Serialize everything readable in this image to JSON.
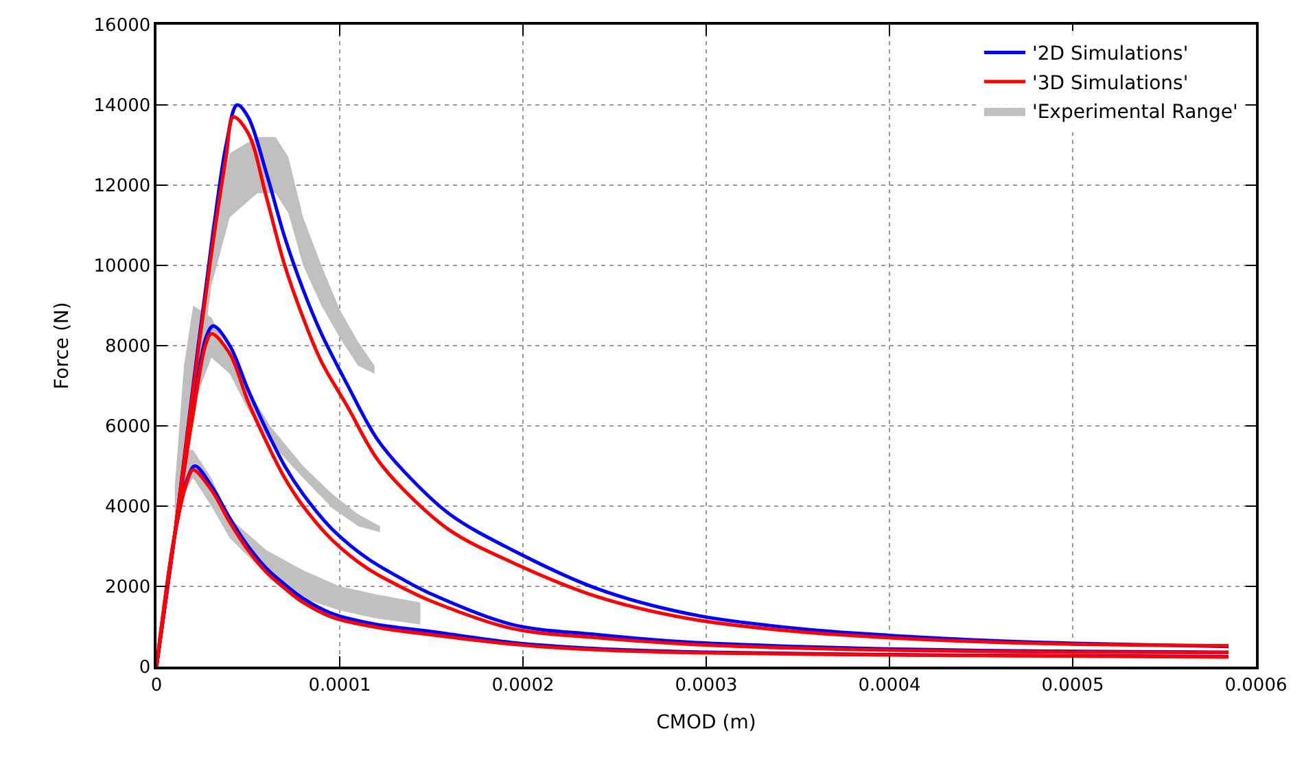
{
  "chart_data": {
    "type": "line",
    "xlabel": "CMOD (m)",
    "ylabel": "Force (N)",
    "xlim": [
      0,
      0.0006
    ],
    "xticks": [
      0,
      0.0001,
      0.0002,
      0.0003,
      0.0004,
      0.0005,
      0.0006
    ],
    "ylim": [
      0,
      16000
    ],
    "yticks": [
      0,
      2000,
      4000,
      6000,
      8000,
      10000,
      12000,
      14000,
      16000
    ],
    "grid": true,
    "legend": "top right",
    "line_style": "solid",
    "marker": "none",
    "series": [
      {
        "type": "area",
        "name": "'Experimental Range'",
        "color": "#c0c0c0",
        "x": [
          2e-05,
          3e-05,
          4e-05,
          5.5e-05,
          6.5e-05,
          7.2e-05,
          8e-05,
          9e-05,
          0.0001,
          0.00011,
          0.000119
        ],
        "values": [
          null,
          null,
          null,
          null,
          null,
          null,
          null,
          null,
          null,
          null,
          null
        ],
        "lower": [
          6000,
          9500,
          11200,
          11800,
          11800,
          11300,
          10000,
          9000,
          8200,
          7500,
          7300
        ],
        "upper": [
          7000,
          11000,
          12800,
          13200,
          13200,
          12700,
          11200,
          10000,
          8900,
          8100,
          7500
        ]
      },
      {
        "type": "area",
        "color": "#bfbfbf",
        "x": [
          1e-05,
          1.5e-05,
          2e-05,
          3e-05,
          4e-05,
          5e-05,
          6.2e-05,
          8e-05,
          9.6e-05,
          0.00011,
          0.000122
        ],
        "values": [
          null,
          null,
          null,
          null,
          null,
          null,
          null,
          null,
          null,
          null,
          null
        ],
        "lower": [
          3300,
          5000,
          6500,
          7700,
          7300,
          6400,
          5600,
          4700,
          3950,
          3500,
          3350
        ],
        "upper": [
          4500,
          7500,
          9000,
          8700,
          7800,
          6900,
          6000,
          5000,
          4300,
          3800,
          3500
        ]
      },
      {
        "type": "area",
        "color": "#c1c1c1",
        "x": [
          1e-05,
          1.5e-05,
          2e-05,
          3e-05,
          4e-05,
          6e-05,
          8e-05,
          0.0001,
          0.00012,
          0.000144
        ],
        "values": [
          null,
          null,
          null,
          null,
          null,
          null,
          null,
          null,
          null,
          null
        ],
        "lower": [
          3000,
          4300,
          4700,
          4000,
          3200,
          2300,
          1700,
          1400,
          1200,
          1050
        ],
        "upper": [
          4000,
          5400,
          5400,
          4700,
          3700,
          2900,
          2400,
          2000,
          1800,
          1600
        ]
      },
      {
        "name": "'2D Simulations'",
        "color": "#0000ff",
        "x": [
          0,
          1e-05,
          2e-05,
          3e-05,
          3.8e-05,
          4.4e-05,
          5e-05,
          6e-05,
          7e-05,
          8e-05,
          9e-05,
          0.000104,
          0.00012,
          0.000135,
          0.00016,
          0.000194,
          0.00024,
          0.00029,
          0.00035,
          0.0004,
          0.00045,
          0.0005,
          0.000585
        ],
        "values": [
          0,
          3300,
          7000,
          10500,
          13000,
          14000,
          13700,
          12300,
          10700,
          9400,
          8300,
          7040,
          5700,
          4870,
          3800,
          2910,
          1950,
          1320,
          950,
          780,
          660,
          580,
          500
        ]
      },
      {
        "color": "#0000ff",
        "x": [
          0,
          1e-05,
          2e-05,
          2.7e-05,
          3.1e-05,
          4e-05,
          5e-05,
          6e-05,
          7e-05,
          8e-05,
          9.6e-05,
          0.000115,
          0.000135,
          0.000149,
          0.000194,
          0.00024,
          0.00029,
          0.00035,
          0.0004,
          0.00045,
          0.0005,
          0.000585
        ],
        "values": [
          0,
          3300,
          6400,
          8200,
          8490,
          8000,
          6900,
          5900,
          5000,
          4300,
          3420,
          2700,
          2160,
          1830,
          1050,
          800,
          610,
          500,
          440,
          400,
          380,
          360
        ]
      },
      {
        "color": "#0000ff",
        "x": [
          0,
          1e-05,
          1.7e-05,
          2.1e-05,
          3e-05,
          4e-05,
          5e-05,
          6e-05,
          7e-05,
          8e-05,
          9.6e-05,
          0.00012,
          0.000149,
          0.000194,
          0.00024,
          0.0003,
          0.0004,
          0.0005,
          0.000585
        ],
        "values": [
          0,
          3300,
          4700,
          5000,
          4500,
          3700,
          3000,
          2450,
          2050,
          1700,
          1320,
          1050,
          880,
          600,
          450,
          360,
          300,
          270,
          250
        ]
      },
      {
        "name": "'3D Simulations'",
        "color": "#ff0000",
        "x": [
          0,
          1e-05,
          2e-05,
          3e-05,
          3.8e-05,
          4.2e-05,
          5e-05,
          6e-05,
          7e-05,
          8e-05,
          9e-05,
          0.000104,
          0.00012,
          0.000135,
          0.00016,
          0.000194,
          0.00024,
          0.00029,
          0.00035,
          0.0004,
          0.00045,
          0.0005,
          0.000585
        ],
        "values": [
          0,
          3300,
          6900,
          10300,
          12700,
          13700,
          13300,
          11700,
          10000,
          8700,
          7600,
          6500,
          5200,
          4400,
          3400,
          2600,
          1750,
          1200,
          870,
          720,
          620,
          560,
          520
        ]
      },
      {
        "color": "#ff0000",
        "x": [
          0,
          1e-05,
          2e-05,
          2.7e-05,
          3e-05,
          4e-05,
          5e-05,
          6e-05,
          7e-05,
          8e-05,
          9.6e-05,
          0.000115,
          0.000135,
          0.000149,
          0.000194,
          0.00024,
          0.00029,
          0.00035,
          0.0004,
          0.00045,
          0.0005,
          0.000585
        ],
        "values": [
          0,
          3300,
          6300,
          8050,
          8300,
          7800,
          6600,
          5600,
          4700,
          4000,
          3150,
          2450,
          1950,
          1650,
          950,
          720,
          560,
          460,
          410,
          380,
          360,
          350
        ]
      },
      {
        "color": "#ff0000",
        "x": [
          0,
          1e-05,
          1.7e-05,
          2e-05,
          3e-05,
          4e-05,
          5e-05,
          6e-05,
          7e-05,
          8e-05,
          9.6e-05,
          0.00012,
          0.000149,
          0.000194,
          0.00024,
          0.0003,
          0.0004,
          0.0005,
          0.000585
        ],
        "values": [
          0,
          3300,
          4650,
          4900,
          4400,
          3600,
          2900,
          2350,
          1950,
          1600,
          1230,
          980,
          800,
          560,
          420,
          340,
          290,
          260,
          240
        ]
      }
    ]
  }
}
